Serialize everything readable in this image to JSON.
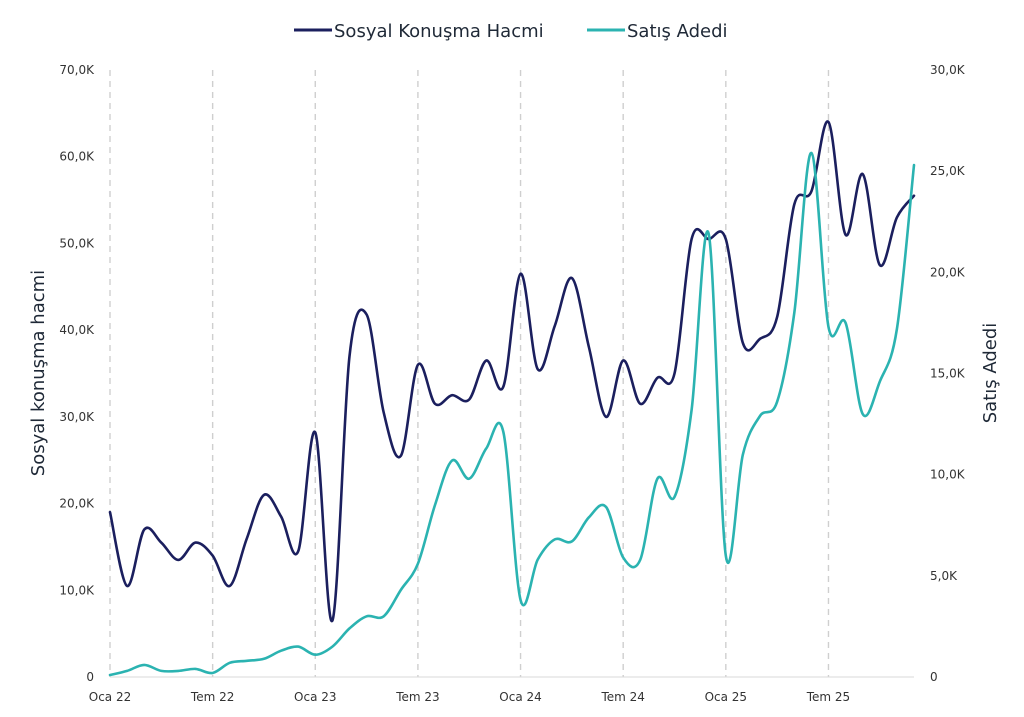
{
  "chart_data": {
    "type": "line",
    "title": "",
    "xlabel": "",
    "ylabel": "Sosyal konuşma hacmi",
    "ylabel_right": "Satış Adedi",
    "legend_position": "top-center",
    "grid": "vertical dashed",
    "x_ticks": [
      {
        "label": "Oca 22",
        "month": 0
      },
      {
        "label": "Tem 22",
        "month": 6
      },
      {
        "label": "Oca 23",
        "month": 12
      },
      {
        "label": "Tem 23",
        "month": 18
      },
      {
        "label": "Oca 24",
        "month": 24
      },
      {
        "label": "Tem 24",
        "month": 30
      },
      {
        "label": "Oca 25",
        "month": 36
      },
      {
        "label": "Tem 25",
        "month": 42
      }
    ],
    "y_left": {
      "min": 0,
      "max": 70000,
      "ticks": [
        "0",
        "10,0K",
        "20,0K",
        "30,0K",
        "40,0K",
        "50,0K",
        "60,0K",
        "70,0K"
      ]
    },
    "y_right": {
      "min": 0,
      "max": 30000,
      "ticks": [
        "0",
        "5,0K",
        "10,0K",
        "15,0K",
        "20,0K",
        "25,0K",
        "30,0K"
      ]
    },
    "series": [
      {
        "name": "Sosyal Konuşma Hacmi",
        "color": "#1b1f5e",
        "axis": "left",
        "x": [
          0,
          1,
          2,
          3,
          4,
          5,
          6,
          7,
          8,
          9,
          10,
          11,
          12,
          13,
          14,
          15,
          16,
          17,
          18,
          19,
          20,
          21,
          22,
          23,
          24,
          25,
          26,
          27,
          28,
          29,
          30,
          31,
          32,
          33,
          34,
          35,
          36,
          37,
          38,
          39,
          40,
          41,
          42,
          43,
          44,
          45,
          46,
          47
        ],
        "values": [
          19000,
          10500,
          17000,
          15500,
          13500,
          15500,
          14000,
          10500,
          16000,
          21000,
          18500,
          14500,
          28200,
          6500,
          37000,
          41800,
          30500,
          25500,
          36000,
          31500,
          32500,
          32000,
          36500,
          33500,
          46500,
          35500,
          40500,
          46000,
          38000,
          30000,
          36500,
          31500,
          34500,
          35000,
          50500,
          50500,
          50500,
          38500,
          39000,
          41500,
          54500,
          56000,
          64000,
          51000,
          58000,
          47500,
          53000,
          55500
        ]
      },
      {
        "name": "Satış Adedi",
        "color": "#2bb3b1",
        "axis": "right",
        "x": [
          0,
          1,
          2,
          3,
          4,
          5,
          6,
          7,
          8,
          9,
          10,
          11,
          12,
          13,
          14,
          15,
          16,
          17,
          18,
          19,
          20,
          21,
          22,
          23,
          24,
          25,
          26,
          27,
          28,
          29,
          30,
          31,
          32,
          33,
          34,
          35,
          36,
          37,
          38,
          39,
          40,
          41,
          42,
          43,
          44,
          45,
          46,
          47
        ],
        "values": [
          100,
          300,
          600,
          300,
          300,
          400,
          200,
          700,
          800,
          900,
          1300,
          1500,
          1100,
          1500,
          2400,
          3000,
          3000,
          4300,
          5600,
          8500,
          10700,
          9800,
          11300,
          12100,
          3800,
          5800,
          6800,
          6700,
          7900,
          8400,
          5900,
          5800,
          9800,
          8900,
          13200,
          21900,
          6000,
          11000,
          12900,
          13600,
          18000,
          25900,
          17300,
          17500,
          13000,
          14600,
          17200,
          25300
        ]
      }
    ]
  }
}
